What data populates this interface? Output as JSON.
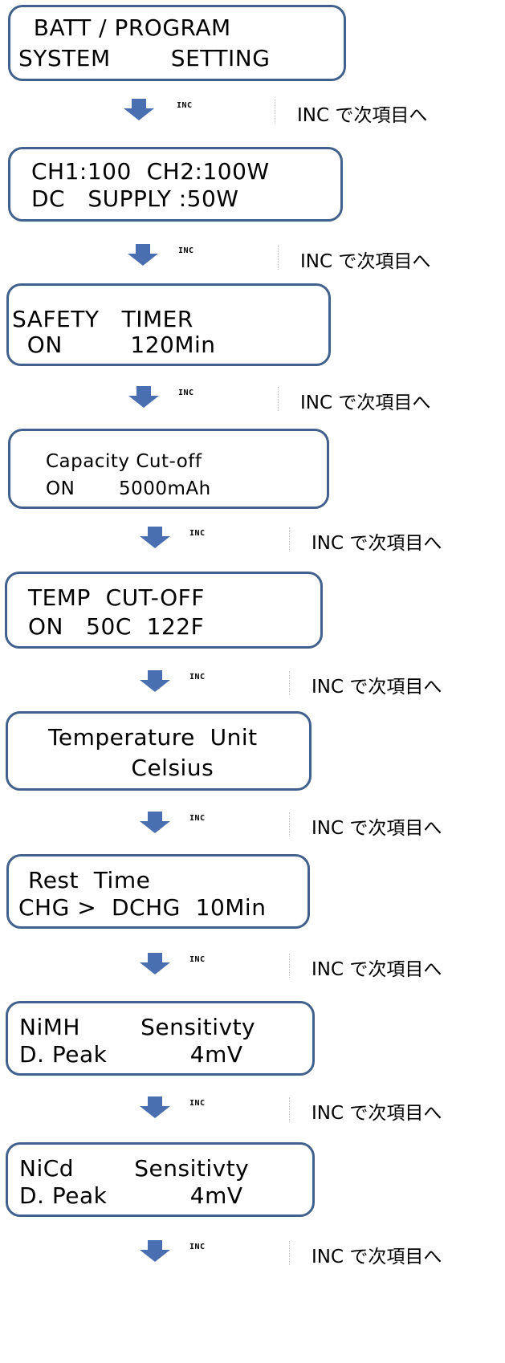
{
  "screens": [
    {
      "line1": "  BATT / PROGRAM",
      "line2": "SYSTEM        SETTING"
    },
    {
      "line1": "CH1:100  CH2:100W",
      "line2": "DC   SUPPLY :50W"
    },
    {
      "line1": "SAFETY   TIMER",
      "line2": "  ON         120Min"
    },
    {
      "line1": "Capacity Cut-off",
      "line2": "ON       5000mAh"
    },
    {
      "line1": "TEMP  CUT-OFF",
      "line2": "ON   50C  122F"
    },
    {
      "line1": "Temperature  Unit",
      "line2": "           Celsius"
    },
    {
      "line1": "Rest  Time",
      "line2": "CHG >  DCHG  10Min"
    },
    {
      "line1": "NiMH        Sensitivty",
      "line2": "D. Peak           4mV"
    },
    {
      "line1": "NiCd        Sensitivty",
      "line2": "D. Peak           4mV"
    }
  ],
  "step": {
    "button": "INC",
    "note": "INC で次項目へ"
  },
  "colors": {
    "border": "#41618c",
    "arrow": "#4a6fb0"
  }
}
